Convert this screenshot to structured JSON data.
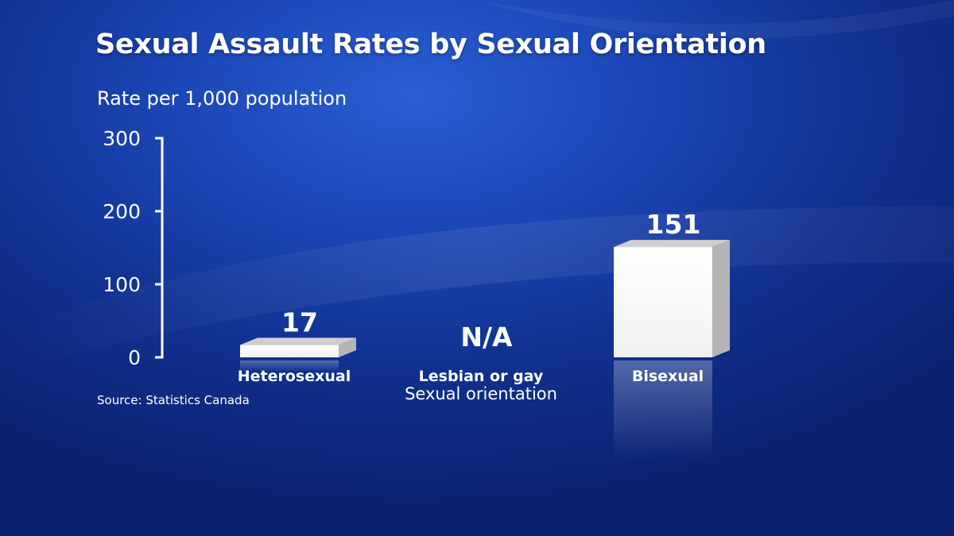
{
  "chart_data": {
    "type": "bar",
    "title": "Sexual Assault Rates by Sexual Orientation",
    "ylabel": "Rate per 1,000 population",
    "xlabel": "Sexual orientation",
    "categories": [
      "Heterosexual",
      "Lesbian or gay",
      "Bisexual"
    ],
    "values": [
      17,
      null,
      151
    ],
    "data_labels": [
      "17",
      "N/A",
      "151"
    ],
    "yticks": [
      0,
      100,
      200,
      300
    ],
    "ylim": [
      0,
      300
    ],
    "grid": false,
    "legend": "none",
    "bar_color": "#ffffff",
    "source": "Source: Statistics Canada"
  }
}
